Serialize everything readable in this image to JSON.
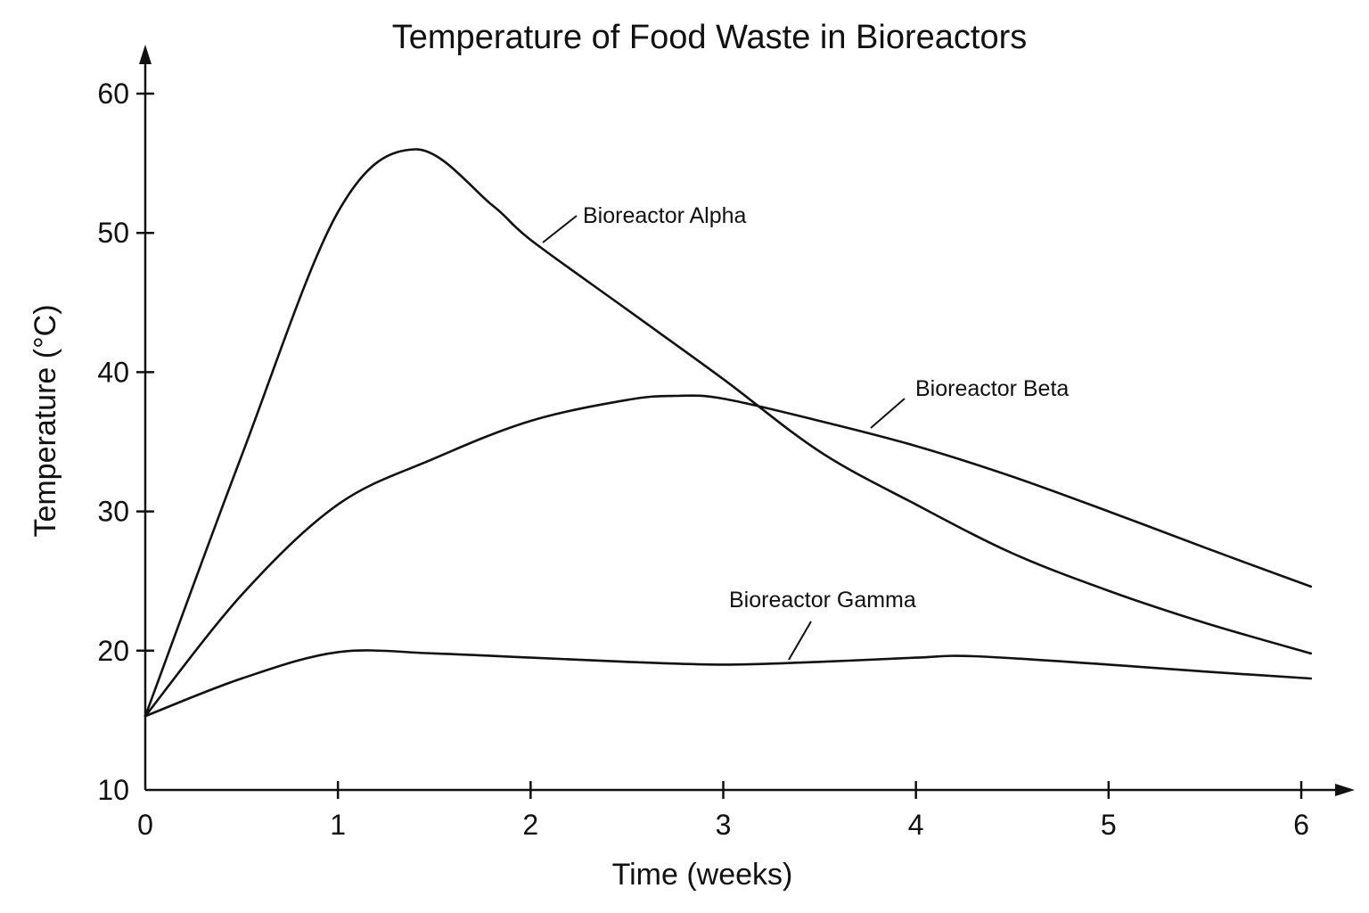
{
  "chart_data": {
    "type": "line",
    "title": "Temperature of Food Waste in Bioreactors",
    "xlabel": "Time (weeks)",
    "ylabel": "Temperature (°C)",
    "xlim": [
      0,
      6
    ],
    "ylim": [
      10,
      60
    ],
    "xticks": [
      "0",
      "1",
      "2",
      "3",
      "4",
      "5",
      "6"
    ],
    "yticks": [
      "10",
      "20",
      "30",
      "40",
      "50",
      "60"
    ],
    "grid": false,
    "legend": "inline labels",
    "series": [
      {
        "name": "Bioreactor Alpha",
        "x": [
          0,
          0.5,
          1,
          1.4,
          1.8,
          2,
          2.5,
          3,
          3.5,
          4,
          4.5,
          5,
          5.5,
          6.05
        ],
        "y": [
          15.3,
          34,
          51.5,
          56,
          52,
          49.5,
          44.5,
          39.5,
          34.3,
          30.5,
          27,
          24.3,
          22,
          19.8
        ]
      },
      {
        "name": "Bioreactor Beta",
        "x": [
          0,
          0.5,
          1,
          1.5,
          2,
          2.5,
          2.75,
          3,
          3.5,
          4,
          4.5,
          5,
          5.5,
          6.05
        ],
        "y": [
          15.3,
          24,
          30.5,
          33.8,
          36.5,
          38,
          38.3,
          38.1,
          36.5,
          34.7,
          32.5,
          30,
          27.4,
          24.6
        ]
      },
      {
        "name": "Bioreactor Gamma",
        "x": [
          0,
          0.5,
          1,
          1.5,
          2,
          2.5,
          3,
          3.5,
          4,
          4.3,
          5,
          5.5,
          6.05
        ],
        "y": [
          15.3,
          18,
          19.9,
          19.8,
          19.5,
          19.2,
          19,
          19.2,
          19.5,
          19.6,
          19,
          18.5,
          18
        ]
      }
    ]
  }
}
